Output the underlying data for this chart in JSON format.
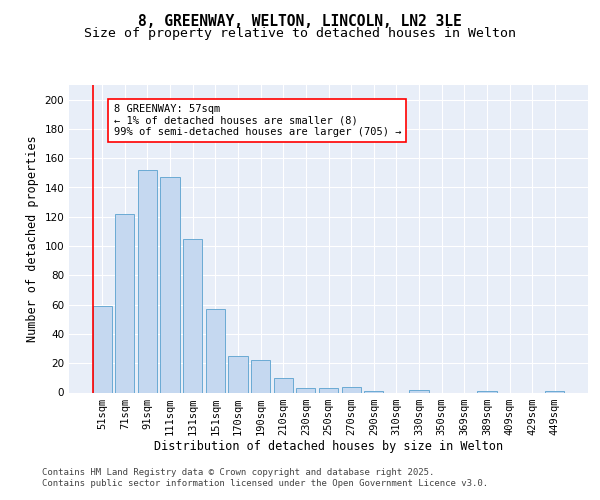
{
  "title_line1": "8, GREENWAY, WELTON, LINCOLN, LN2 3LE",
  "title_line2": "Size of property relative to detached houses in Welton",
  "xlabel": "Distribution of detached houses by size in Welton",
  "ylabel": "Number of detached properties",
  "bar_color": "#c5d8f0",
  "bar_edge_color": "#6aaad4",
  "background_color": "#e8eef8",
  "categories": [
    "51sqm",
    "71sqm",
    "91sqm",
    "111sqm",
    "131sqm",
    "151sqm",
    "170sqm",
    "190sqm",
    "210sqm",
    "230sqm",
    "250sqm",
    "270sqm",
    "290sqm",
    "310sqm",
    "330sqm",
    "350sqm",
    "369sqm",
    "389sqm",
    "409sqm",
    "429sqm",
    "449sqm"
  ],
  "values": [
    59,
    122,
    152,
    147,
    105,
    57,
    25,
    22,
    10,
    3,
    3,
    4,
    1,
    0,
    2,
    0,
    0,
    1,
    0,
    0,
    1
  ],
  "ylim": [
    0,
    210
  ],
  "yticks": [
    0,
    20,
    40,
    60,
    80,
    100,
    120,
    140,
    160,
    180,
    200
  ],
  "annotation_text": "8 GREENWAY: 57sqm\n← 1% of detached houses are smaller (8)\n99% of semi-detached houses are larger (705) →",
  "footer_text": "Contains HM Land Registry data © Crown copyright and database right 2025.\nContains public sector information licensed under the Open Government Licence v3.0.",
  "title_fontsize": 10.5,
  "subtitle_fontsize": 9.5,
  "axis_label_fontsize": 8.5,
  "tick_fontsize": 7.5,
  "annotation_fontsize": 7.5,
  "footer_fontsize": 6.5,
  "grid_color": "#ffffff",
  "spine_color": "#cccccc"
}
